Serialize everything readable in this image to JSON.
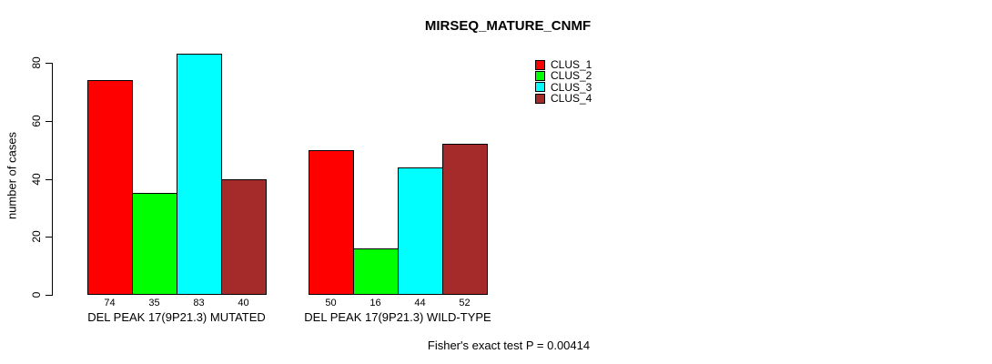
{
  "chart_data": {
    "type": "bar",
    "title": "MIRSEQ_MATURE_CNMF",
    "ylabel": "number of cases",
    "ylim": [
      0,
      80
    ],
    "yticks": [
      0,
      20,
      40,
      60,
      80
    ],
    "categories": [
      "DEL PEAK 17(9P21.3) MUTATED",
      "DEL PEAK 17(9P21.3) WILD-TYPE"
    ],
    "series": [
      {
        "name": "CLUS_1",
        "color": "#FF0000",
        "values": [
          74,
          50
        ]
      },
      {
        "name": "CLUS_2",
        "color": "#00FF00",
        "values": [
          35,
          16
        ]
      },
      {
        "name": "CLUS_3",
        "color": "#00FFFF",
        "values": [
          83,
          44
        ]
      },
      {
        "name": "CLUS_4",
        "color": "#A52A2A",
        "values": [
          40,
          52
        ]
      }
    ],
    "bar_value_labels": [
      [
        74,
        35,
        83,
        40
      ],
      [
        50,
        16,
        44,
        52
      ]
    ],
    "legend_position": "top-right",
    "grid": false,
    "annotation": "Fisher's exact test P = 0.00414",
    "text_color": "#000000",
    "background_color": "#FFFFFF"
  }
}
